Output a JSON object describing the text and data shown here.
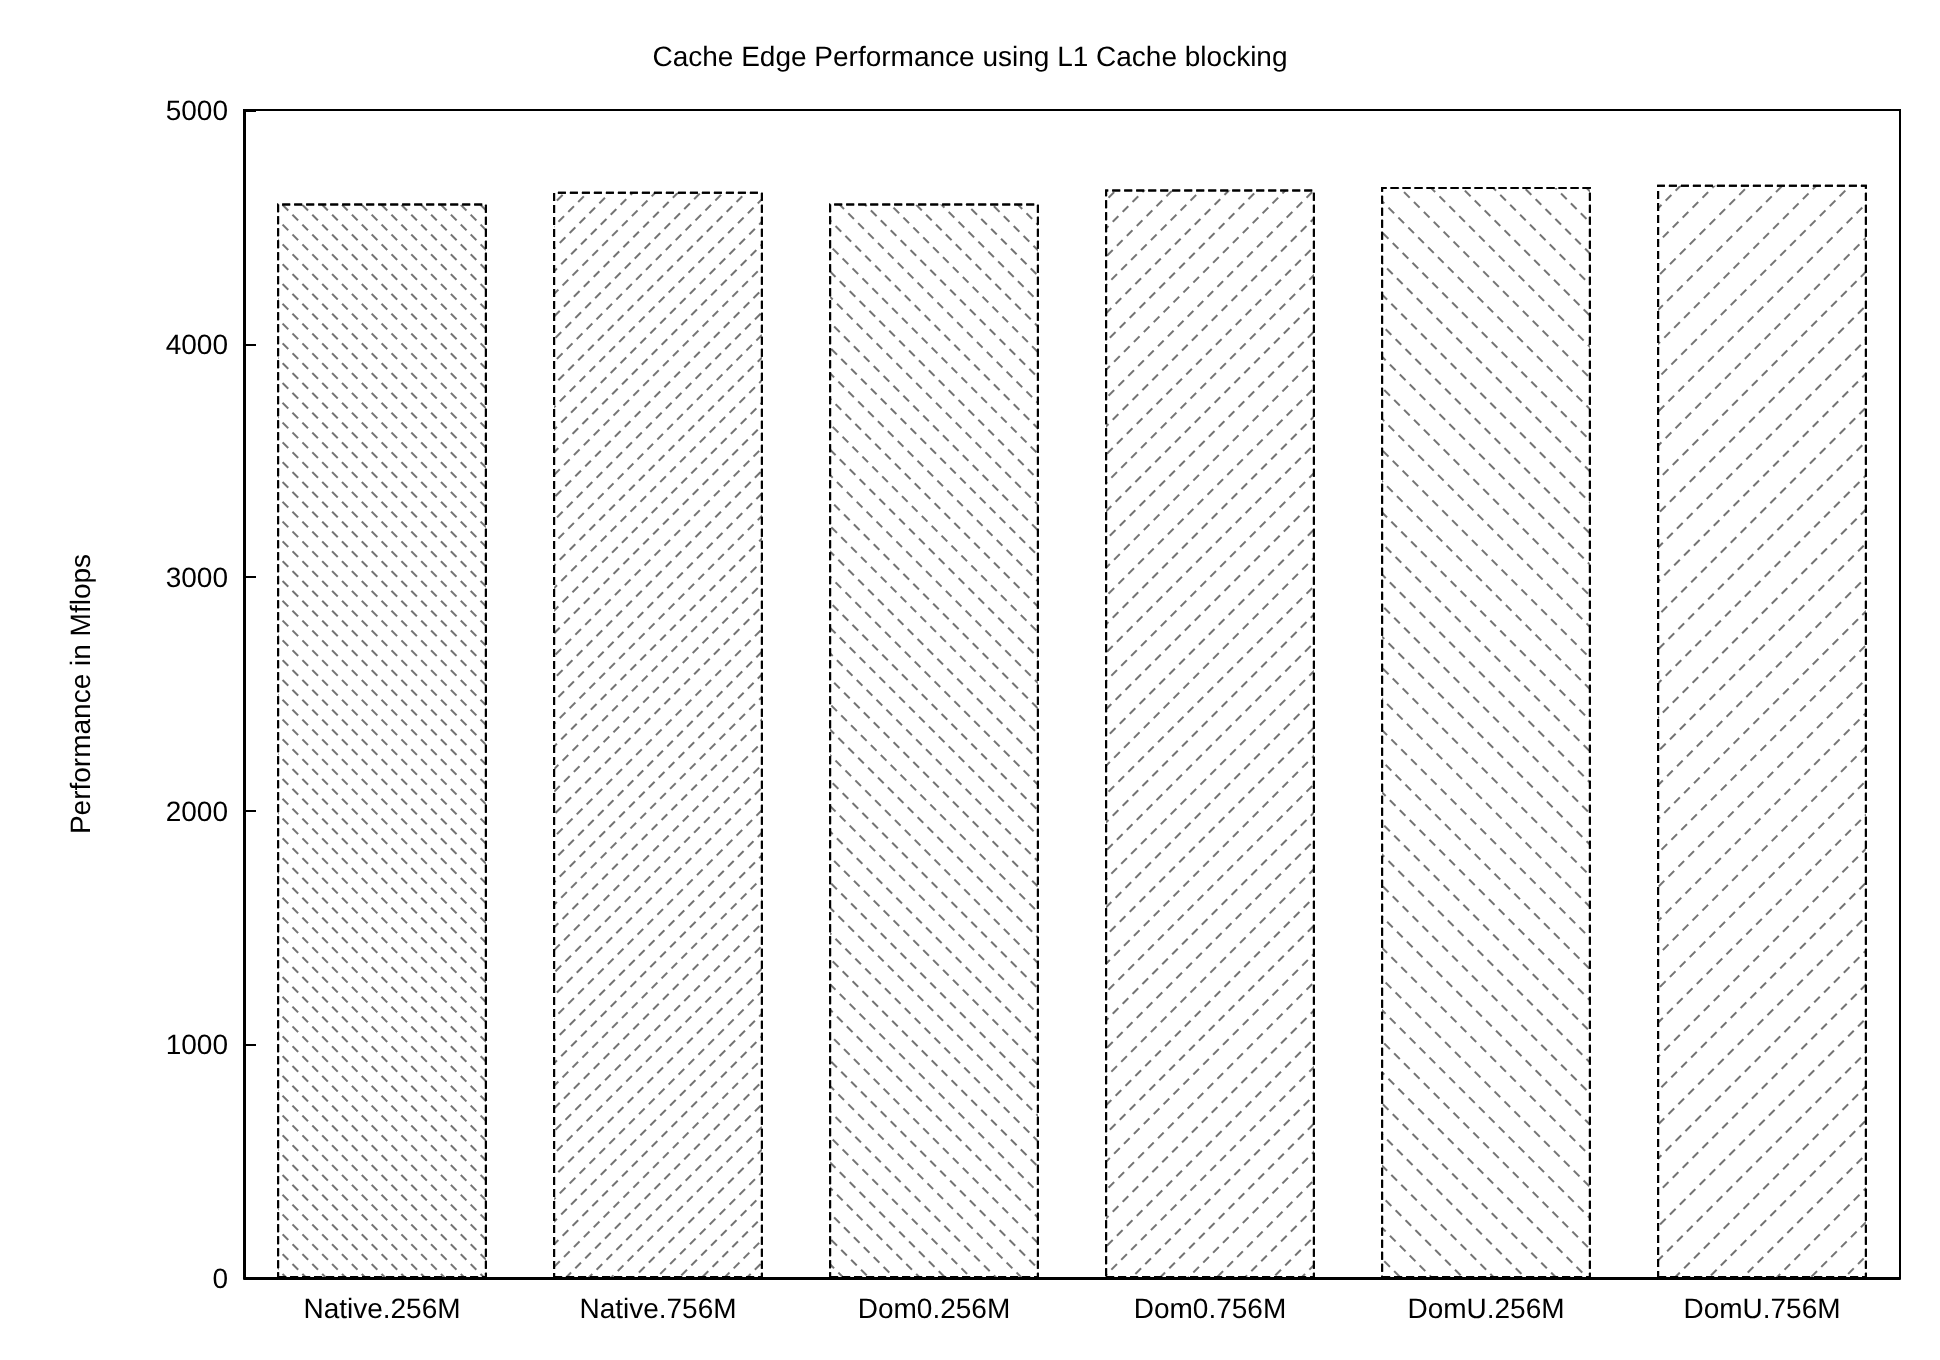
{
  "chart_data": {
    "type": "bar",
    "title": "Cache Edge Performance using L1 Cache blocking",
    "ylabel": "Performance in Mflops",
    "categories": [
      "Native.256M",
      "Native.756M",
      "Dom0.256M",
      "Dom0.756M",
      "DomU.256M",
      "DomU.756M"
    ],
    "values": [
      4600,
      4650,
      4600,
      4660,
      4670,
      4680
    ],
    "color": "#ffffff",
    "ylim": [
      0,
      5000
    ],
    "yticks": [
      0,
      1000,
      2000,
      3000,
      4000,
      5000
    ],
    "grid": false
  }
}
